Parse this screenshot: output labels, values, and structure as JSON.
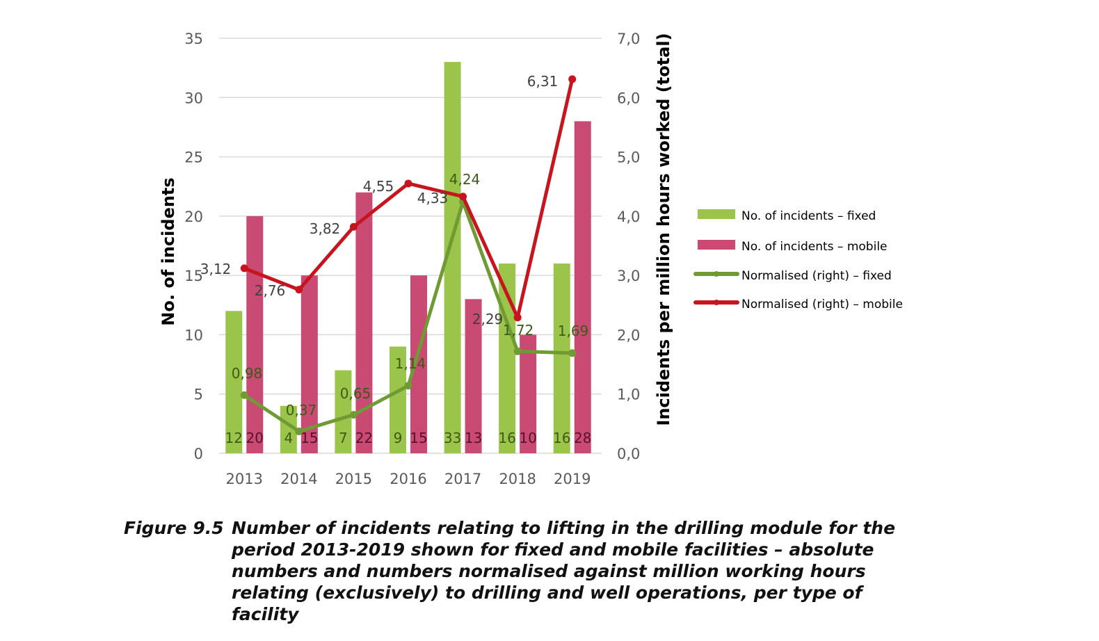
{
  "chart_data": {
    "type": "bar+line",
    "categories": [
      "2013",
      "2014",
      "2015",
      "2016",
      "2017",
      "2018",
      "2019"
    ],
    "series": [
      {
        "name": "No. of incidents – fixed",
        "type": "bar",
        "axis": "left",
        "color": "#9bc54a",
        "values": [
          12,
          4,
          7,
          9,
          33,
          16,
          16
        ],
        "labels": [
          "12",
          "4",
          "7",
          "9",
          "33",
          "16",
          "16"
        ]
      },
      {
        "name": "No. of incidents – mobile",
        "type": "bar",
        "axis": "left",
        "color": "#c94a72",
        "values": [
          20,
          15,
          22,
          15,
          13,
          10,
          28
        ],
        "labels": [
          "20",
          "15",
          "22",
          "15",
          "13",
          "10",
          "28"
        ]
      },
      {
        "name": "Normalised (right) – fixed",
        "type": "line",
        "axis": "right",
        "color": "#6f9a34",
        "values": [
          0.98,
          0.37,
          0.65,
          1.14,
          4.24,
          1.72,
          1.69
        ],
        "labels": [
          "0,98",
          "0,37",
          "0,65",
          "1,14",
          "4,24",
          "1,72",
          "1,69"
        ]
      },
      {
        "name": "Normalised (right) – mobile",
        "type": "line",
        "axis": "right",
        "color": "#c8141e",
        "values": [
          3.12,
          2.76,
          3.82,
          4.55,
          4.33,
          2.29,
          6.31
        ],
        "labels": [
          "3,12",
          "2,76",
          "3,82",
          "4,55",
          "4,33",
          "2,29",
          "6,31"
        ]
      }
    ],
    "ylabel": "No. of incidents",
    "y2label": "Incidents per million hours worked (total)",
    "ylim": [
      0,
      35
    ],
    "y2lim": [
      0,
      7
    ],
    "yticks": [
      "0",
      "5",
      "10",
      "15",
      "20",
      "25",
      "30",
      "35"
    ],
    "y2ticks": [
      "0,0",
      "1,0",
      "2,0",
      "3,0",
      "4,0",
      "5,0",
      "6,0",
      "7,0"
    ],
    "grid": true,
    "legend_position": "right"
  },
  "caption": {
    "number": "Figure 9.5",
    "text": "Number of incidents relating to lifting in the drilling module for the period 2013-2019 shown for fixed and mobile facilities – absolute numbers and numbers normalised against million working hours relating (exclusively) to drilling and well operations, per type of facility"
  }
}
